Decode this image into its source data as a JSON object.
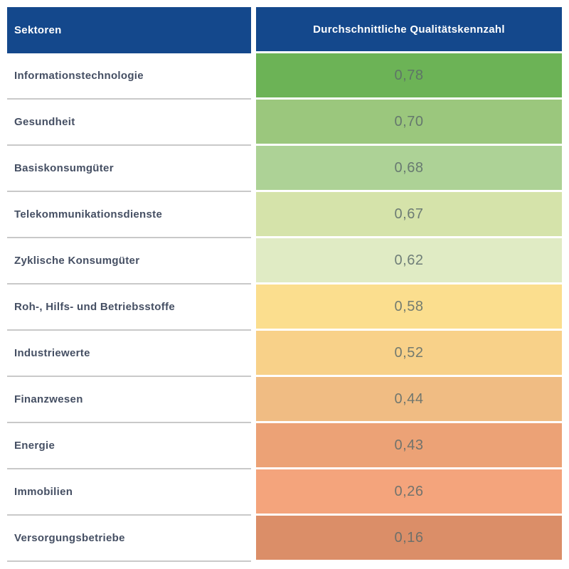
{
  "table": {
    "header": {
      "sector_label": "Sektoren",
      "value_label": "Durchschnittliche Qualitätskennzahl"
    },
    "rows": [
      {
        "sector": "Informationstechnologie",
        "value": "0,78",
        "color": "#6CB356"
      },
      {
        "sector": "Gesundheit",
        "value": "0,70",
        "color": "#9BC77D"
      },
      {
        "sector": "Basiskonsumgüter",
        "value": "0,68",
        "color": "#ADD296"
      },
      {
        "sector": "Telekommunikationsdienste",
        "value": "0,67",
        "color": "#D5E3AA"
      },
      {
        "sector": "Zyklische Konsumgüter",
        "value": "0,62",
        "color": "#E0EBC4"
      },
      {
        "sector": "Roh-, Hilfs- und Betriebsstoffe",
        "value": "0,58",
        "color": "#FBDE8E"
      },
      {
        "sector": "Industriewerte",
        "value": "0,52",
        "color": "#F8D189"
      },
      {
        "sector": "Finanzwesen",
        "value": "0,44",
        "color": "#F0BC83"
      },
      {
        "sector": "Energie",
        "value": "0,43",
        "color": "#ECA276"
      },
      {
        "sector": "Immobilien",
        "value": "0,26",
        "color": "#F4A47C"
      },
      {
        "sector": "Versorgungsbetriebe",
        "value": "0,16",
        "color": "#DB8E68"
      }
    ]
  },
  "colors": {
    "header_bg": "#14488C",
    "header_text": "#FFFFFF",
    "sector_text": "#454F63",
    "value_text": "#5C6B6B",
    "row_divider": "#C9C9C9",
    "page_bg": "#FFFFFF"
  },
  "chart_data": {
    "type": "table",
    "columns": [
      "Sektoren",
      "Durchschnittliche Qualitätskennzahl"
    ],
    "categories": [
      "Informationstechnologie",
      "Gesundheit",
      "Basiskonsumgüter",
      "Telekommunikationsdienste",
      "Zyklische Konsumgüter",
      "Roh-, Hilfs- und Betriebsstoffe",
      "Industriewerte",
      "Finanzwesen",
      "Energie",
      "Immobilien",
      "Versorgungsbetriebe"
    ],
    "values": [
      0.78,
      0.7,
      0.68,
      0.67,
      0.62,
      0.58,
      0.52,
      0.44,
      0.43,
      0.26,
      0.16
    ],
    "value_format": "comma-decimal, 2 places",
    "value_range": [
      0,
      1
    ],
    "color_scale": "heatmap: green (high) through yellow to orange/terracotta (low)",
    "cell_colors": [
      "#6CB356",
      "#9BC77D",
      "#ADD296",
      "#D5E3AA",
      "#E0EBC4",
      "#FBDE8E",
      "#F8D189",
      "#F0BC83",
      "#ECA276",
      "#F4A47C",
      "#DB8E68"
    ],
    "legend": "off",
    "grid": "off"
  }
}
